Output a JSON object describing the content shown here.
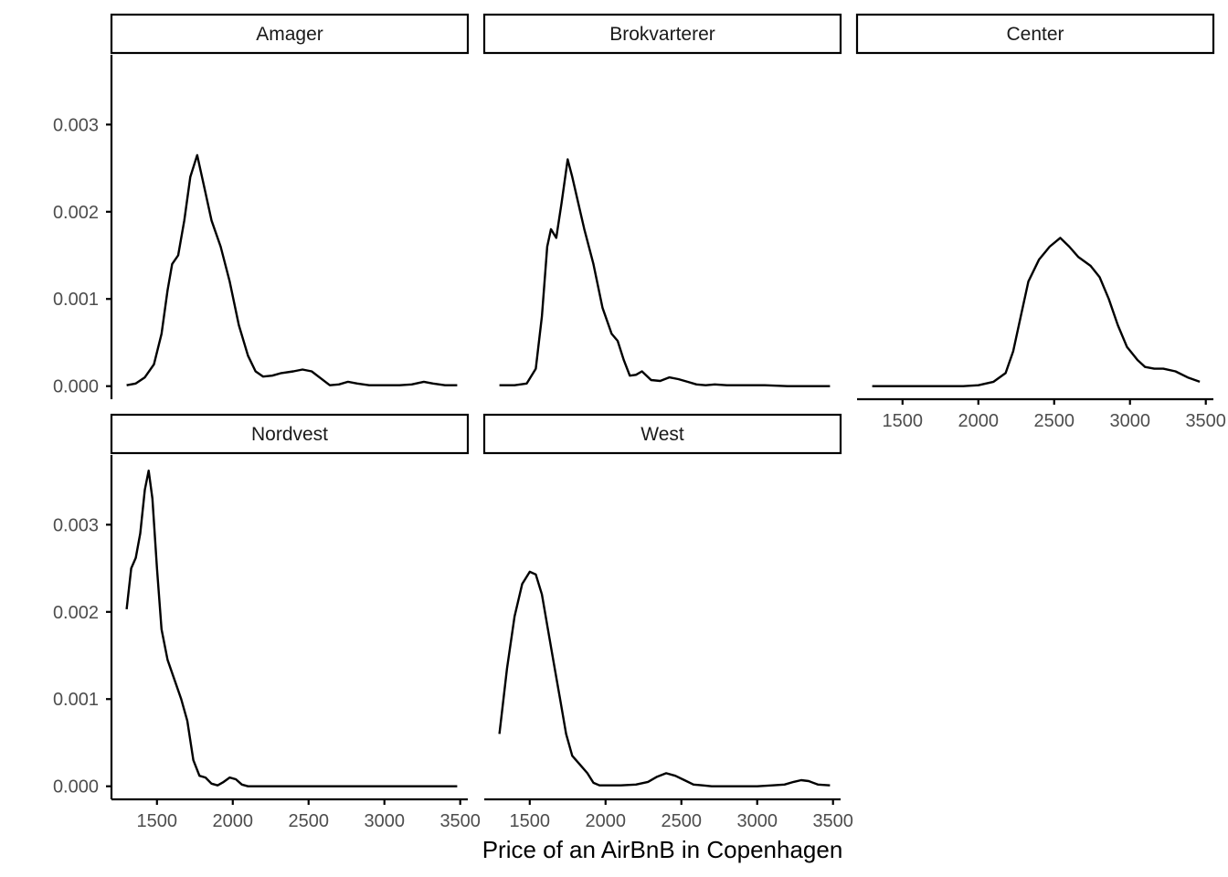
{
  "chart_data": {
    "type": "line",
    "subtype": "faceted density",
    "title": "",
    "xlabel": "Price of an AirBnB in Copenhagen",
    "ylabel": "",
    "xlim": [
      1200,
      3550
    ],
    "ylim": [
      -0.00015,
      0.0038
    ],
    "x_ticks": [
      1500,
      2000,
      2500,
      3000,
      3500
    ],
    "y_ticks": [
      0,
      0.001,
      0.002,
      0.003
    ],
    "y_tick_labels": [
      "0.000",
      "0.001",
      "0.002",
      "0.003"
    ],
    "grid": false,
    "line_color": "#000000",
    "facets": [
      {
        "name": "Amager",
        "points": [
          [
            1300,
            1e-05
          ],
          [
            1360,
            3e-05
          ],
          [
            1420,
            0.0001
          ],
          [
            1480,
            0.00025
          ],
          [
            1530,
            0.0006
          ],
          [
            1570,
            0.0011
          ],
          [
            1600,
            0.0014
          ],
          [
            1640,
            0.0015
          ],
          [
            1680,
            0.0019
          ],
          [
            1720,
            0.0024
          ],
          [
            1765,
            0.00265
          ],
          [
            1810,
            0.0023
          ],
          [
            1860,
            0.0019
          ],
          [
            1920,
            0.0016
          ],
          [
            1980,
            0.0012
          ],
          [
            2040,
            0.0007
          ],
          [
            2100,
            0.00035
          ],
          [
            2150,
            0.00017
          ],
          [
            2200,
            0.00011
          ],
          [
            2260,
            0.00012
          ],
          [
            2320,
            0.00015
          ],
          [
            2400,
            0.00017
          ],
          [
            2460,
            0.00019
          ],
          [
            2520,
            0.00017
          ],
          [
            2580,
            9e-05
          ],
          [
            2640,
            1e-05
          ],
          [
            2700,
            2e-05
          ],
          [
            2760,
            5e-05
          ],
          [
            2820,
            3e-05
          ],
          [
            2900,
            1e-05
          ],
          [
            3000,
            1e-05
          ],
          [
            3100,
            1e-05
          ],
          [
            3180,
            2e-05
          ],
          [
            3260,
            5e-05
          ],
          [
            3320,
            3e-05
          ],
          [
            3400,
            1e-05
          ],
          [
            3480,
            1e-05
          ]
        ]
      },
      {
        "name": "Brokvarterer",
        "points": [
          [
            1300,
            1e-05
          ],
          [
            1400,
            1e-05
          ],
          [
            1480,
            3e-05
          ],
          [
            1540,
            0.0002
          ],
          [
            1580,
            0.0008
          ],
          [
            1615,
            0.0016
          ],
          [
            1640,
            0.0018
          ],
          [
            1675,
            0.0017
          ],
          [
            1710,
            0.0021
          ],
          [
            1750,
            0.0026
          ],
          [
            1780,
            0.0024
          ],
          [
            1820,
            0.0021
          ],
          [
            1860,
            0.0018
          ],
          [
            1920,
            0.0014
          ],
          [
            1980,
            0.0009
          ],
          [
            2040,
            0.0006
          ],
          [
            2080,
            0.00052
          ],
          [
            2120,
            0.0003
          ],
          [
            2160,
            0.00012
          ],
          [
            2200,
            0.00013
          ],
          [
            2240,
            0.00017
          ],
          [
            2300,
            7e-05
          ],
          [
            2360,
            6e-05
          ],
          [
            2420,
            0.0001
          ],
          [
            2480,
            8e-05
          ],
          [
            2540,
            5e-05
          ],
          [
            2600,
            2e-05
          ],
          [
            2660,
            1e-05
          ],
          [
            2720,
            2e-05
          ],
          [
            2800,
            1e-05
          ],
          [
            2900,
            1e-05
          ],
          [
            3050,
            1e-05
          ],
          [
            3200,
            0
          ],
          [
            3350,
            0
          ],
          [
            3480,
            0
          ]
        ]
      },
      {
        "name": "Center",
        "points": [
          [
            1300,
            0
          ],
          [
            1500,
            0
          ],
          [
            1700,
            0
          ],
          [
            1900,
            0
          ],
          [
            2000,
            1e-05
          ],
          [
            2100,
            5e-05
          ],
          [
            2180,
            0.00015
          ],
          [
            2230,
            0.0004
          ],
          [
            2280,
            0.0008
          ],
          [
            2330,
            0.0012
          ],
          [
            2400,
            0.00145
          ],
          [
            2470,
            0.0016
          ],
          [
            2540,
            0.0017
          ],
          [
            2600,
            0.0016
          ],
          [
            2660,
            0.00148
          ],
          [
            2740,
            0.00138
          ],
          [
            2800,
            0.00125
          ],
          [
            2860,
            0.001
          ],
          [
            2920,
            0.0007
          ],
          [
            2980,
            0.00045
          ],
          [
            3050,
            0.0003
          ],
          [
            3100,
            0.00022
          ],
          [
            3160,
            0.0002
          ],
          [
            3220,
            0.0002
          ],
          [
            3300,
            0.00017
          ],
          [
            3380,
            0.0001
          ],
          [
            3460,
            5e-05
          ]
        ]
      },
      {
        "name": "Nordvest",
        "points": [
          [
            1300,
            0.00203
          ],
          [
            1330,
            0.0025
          ],
          [
            1360,
            0.00262
          ],
          [
            1390,
            0.0029
          ],
          [
            1420,
            0.0034
          ],
          [
            1445,
            0.00362
          ],
          [
            1470,
            0.0033
          ],
          [
            1500,
            0.0025
          ],
          [
            1530,
            0.0018
          ],
          [
            1570,
            0.00145
          ],
          [
            1620,
            0.0012
          ],
          [
            1660,
            0.001
          ],
          [
            1700,
            0.00075
          ],
          [
            1740,
            0.0003
          ],
          [
            1780,
            0.00012
          ],
          [
            1820,
            0.0001
          ],
          [
            1860,
            3e-05
          ],
          [
            1900,
            1e-05
          ],
          [
            1940,
            5e-05
          ],
          [
            1980,
            0.0001
          ],
          [
            2020,
            8e-05
          ],
          [
            2060,
            2e-05
          ],
          [
            2100,
            0
          ],
          [
            2200,
            0
          ],
          [
            2300,
            0
          ],
          [
            2500,
            0
          ],
          [
            2700,
            0
          ],
          [
            2900,
            0
          ],
          [
            3100,
            0
          ],
          [
            3300,
            0
          ],
          [
            3480,
            0
          ]
        ]
      },
      {
        "name": "West",
        "points": [
          [
            1300,
            0.0006
          ],
          [
            1350,
            0.00135
          ],
          [
            1400,
            0.00195
          ],
          [
            1450,
            0.00232
          ],
          [
            1500,
            0.00246
          ],
          [
            1540,
            0.00243
          ],
          [
            1580,
            0.0022
          ],
          [
            1620,
            0.0018
          ],
          [
            1660,
            0.0014
          ],
          [
            1700,
            0.001
          ],
          [
            1740,
            0.0006
          ],
          [
            1780,
            0.00035
          ],
          [
            1830,
            0.00025
          ],
          [
            1880,
            0.00015
          ],
          [
            1920,
            4e-05
          ],
          [
            1960,
            1e-05
          ],
          [
            2000,
            1e-05
          ],
          [
            2100,
            1e-05
          ],
          [
            2200,
            2e-05
          ],
          [
            2280,
            5e-05
          ],
          [
            2340,
            0.00011
          ],
          [
            2400,
            0.00015
          ],
          [
            2460,
            0.00012
          ],
          [
            2520,
            7e-05
          ],
          [
            2580,
            2e-05
          ],
          [
            2640,
            1e-05
          ],
          [
            2700,
            0
          ],
          [
            2800,
            0
          ],
          [
            2900,
            0
          ],
          [
            3000,
            0
          ],
          [
            3100,
            1e-05
          ],
          [
            3180,
            2e-05
          ],
          [
            3240,
            5e-05
          ],
          [
            3290,
            7e-05
          ],
          [
            3340,
            6e-05
          ],
          [
            3400,
            2e-05
          ],
          [
            3480,
            1e-05
          ]
        ]
      }
    ]
  }
}
